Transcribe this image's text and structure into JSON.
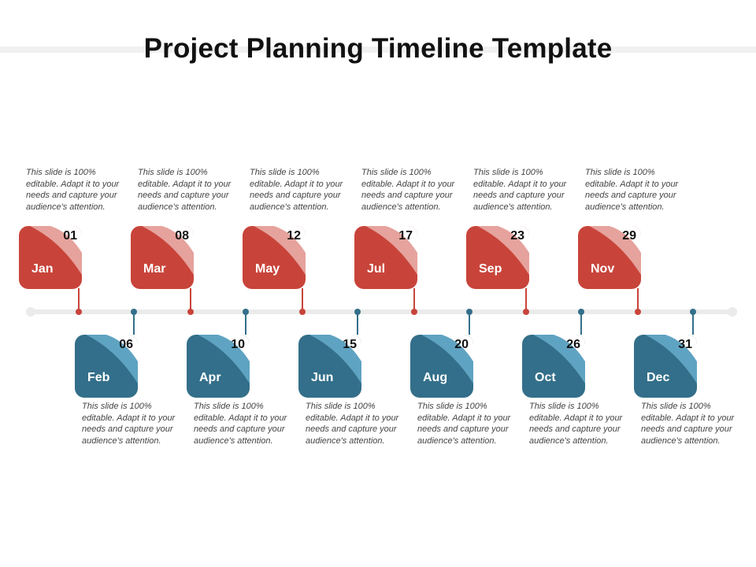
{
  "title": "Project Planning Timeline Template",
  "colors": {
    "top_card": "#c8443a",
    "top_card_fold": "#e6a29c",
    "bottom_card": "#336f8a",
    "bottom_card_fold": "#5fa3c2",
    "axis": "#ebebeb"
  },
  "top_events": [
    {
      "day": "01",
      "month": "Jan",
      "description": "This slide is 100% editable. Adapt it to your needs and capture your audience's attention."
    },
    {
      "day": "08",
      "month": "Mar",
      "description": "This slide is 100% editable. Adapt it to your needs and capture your audience's attention."
    },
    {
      "day": "12",
      "month": "May",
      "description": "This slide is 100% editable. Adapt it to your needs and capture your audience's attention."
    },
    {
      "day": "17",
      "month": "Jul",
      "description": "This slide is 100% editable. Adapt it to your needs and capture your audience's attention."
    },
    {
      "day": "23",
      "month": "Sep",
      "description": "This slide is 100% editable. Adapt it to your needs and capture your audience's attention."
    },
    {
      "day": "29",
      "month": "Nov",
      "description": "This slide is 100% editable. Adapt it to your needs and capture your audience's attention."
    }
  ],
  "bottom_events": [
    {
      "day": "06",
      "month": "Feb",
      "description": "This slide is 100% editable. Adapt it to your needs and capture your audience's attention."
    },
    {
      "day": "10",
      "month": "Apr",
      "description": "This slide is 100% editable. Adapt it to your needs and capture your audience's attention."
    },
    {
      "day": "15",
      "month": "Jun",
      "description": "This slide is 100% editable. Adapt it to your needs and capture your audience's attention."
    },
    {
      "day": "20",
      "month": "Aug",
      "description": "This slide is 100% editable. Adapt it to your needs and capture your audience's attention."
    },
    {
      "day": "26",
      "month": "Oct",
      "description": "This slide is 100% editable. Adapt it to your needs and capture your audience's attention."
    },
    {
      "day": "31",
      "month": "Dec",
      "description": "This slide is 100% editable. Adapt it to your needs and capture your audience's attention."
    }
  ]
}
